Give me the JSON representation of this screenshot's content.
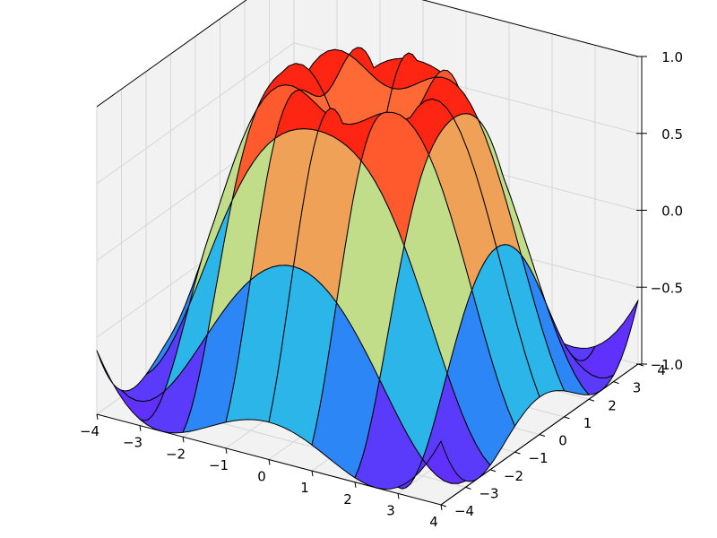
{
  "chart_data": {
    "type": "surface",
    "title": "",
    "xlabel": "",
    "ylabel": "",
    "zlabel": "",
    "function": "z = sin(sqrt(x^2 + y^2))",
    "x": [
      -4,
      -3,
      -2,
      -1,
      0,
      1,
      2,
      3,
      4
    ],
    "y": [
      -4,
      -3,
      -2,
      -1,
      0,
      1,
      2,
      3,
      4
    ],
    "xlim": [
      -4,
      4
    ],
    "ylim": [
      -4,
      4
    ],
    "zlim": [
      -1.0,
      1.0
    ],
    "x_ticks": [
      "−4",
      "−3",
      "−2",
      "−1",
      "0",
      "1",
      "2",
      "3",
      "4"
    ],
    "y_ticks": [
      "−4",
      "−3",
      "−2",
      "−1",
      "0",
      "1",
      "2",
      "3",
      "4"
    ],
    "z_ticks": [
      "−1.0",
      "−0.5",
      "0.0",
      "0.5",
      "1.0"
    ],
    "colormap": "rainbow",
    "colormap_stops": [
      "#8000ff",
      "#2c7ef7",
      "#2adddd",
      "#d4dd80",
      "#ff7e41",
      "#ff0000"
    ],
    "edge_color": "#000000",
    "grid": true,
    "pane_color": "#f2f2f2",
    "view": {
      "elevation_deg": 30,
      "azimuth_deg": -60
    }
  }
}
